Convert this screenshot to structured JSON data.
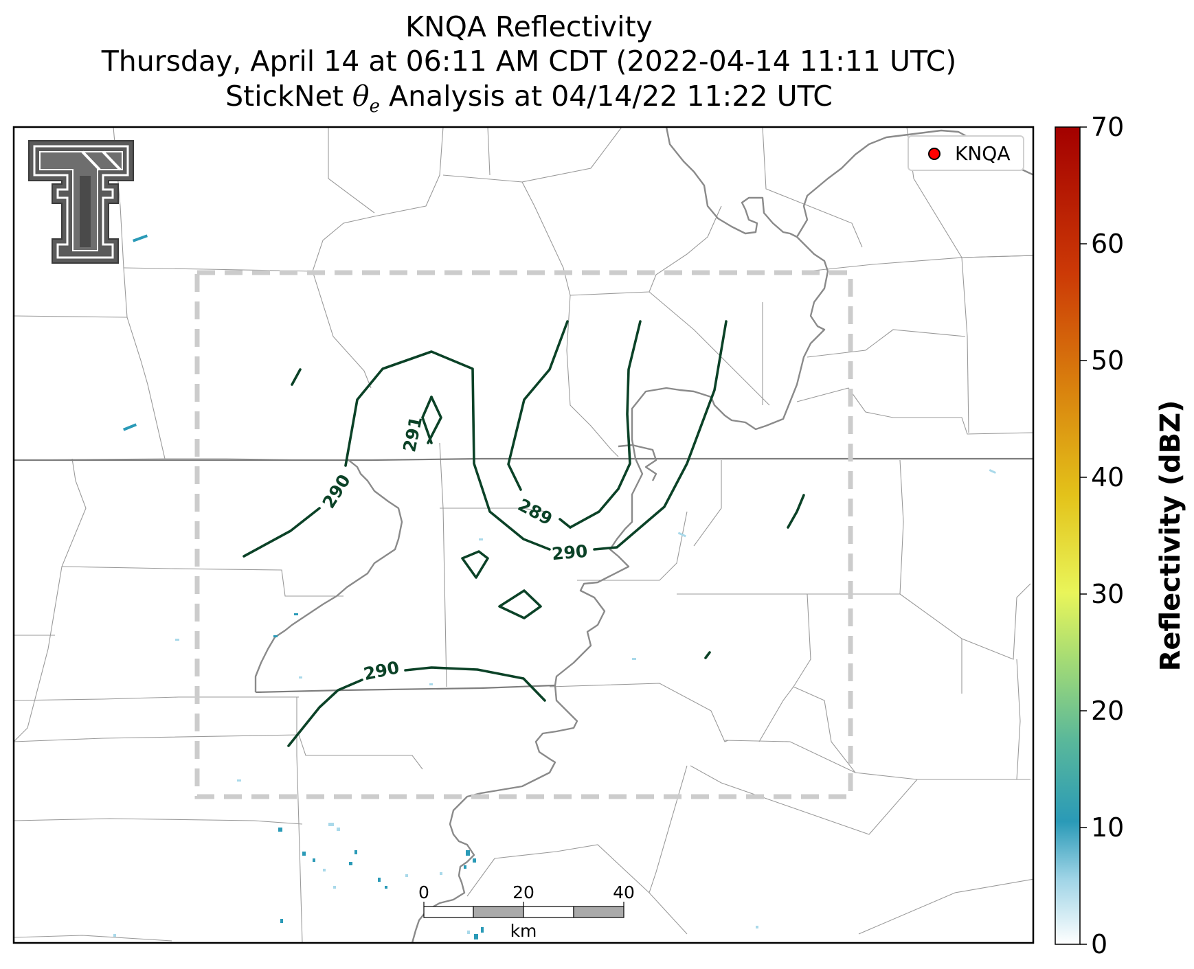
{
  "title": {
    "line1": "KNQA Reflectivity",
    "line2": "Thursday, April 14 at 06:11 AM CDT (2022-04-14 11:11 UTC)",
    "line3_prefix": "StickNet ",
    "line3_theta": "θ",
    "line3_sub": "e",
    "line3_suffix": " Analysis at 04/14/22 11:22 UTC"
  },
  "legend": {
    "marker_color": "#ff0000",
    "label": "KNQA"
  },
  "contour_labels": [
    "291",
    "290",
    "289",
    "290",
    "290"
  ],
  "scalebar": {
    "ticks": [
      "0",
      "20",
      "40"
    ],
    "unit": "km"
  },
  "colorbar": {
    "label": "Reflectivity (dBZ)",
    "ticks": [
      "0",
      "10",
      "20",
      "30",
      "40",
      "50",
      "60",
      "70"
    ],
    "min": 0,
    "max": 70
  },
  "colors": {
    "contour": "#0b4227",
    "analysis_box": "#cccccc",
    "radar_echo": "#2a9ab7"
  },
  "logo": {
    "icon": "texas-tech-double-t-logo",
    "text": "T"
  }
}
